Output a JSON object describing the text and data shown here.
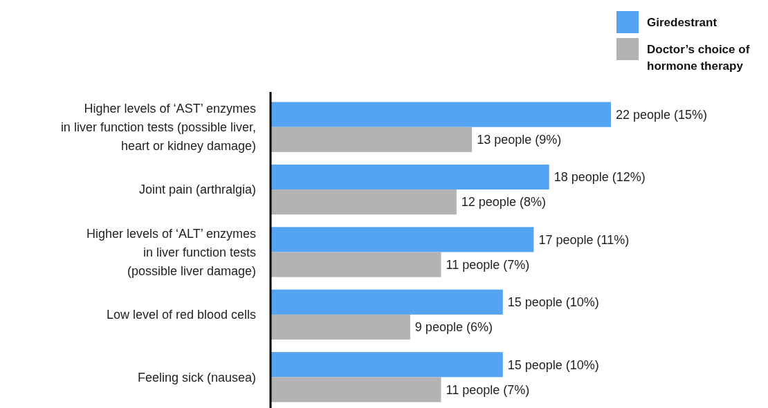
{
  "chart_data": {
    "type": "bar",
    "orientation": "horizontal",
    "legend": "top right",
    "categories": [
      "Higher levels of ‘AST’ enzymes\nin liver function tests (possible liver,\nheart or kidney damage)",
      "Joint pain (arthralgia)",
      "Higher levels of ‘ALT’ enzymes\nin liver function tests\n(possible liver damage)",
      "Low level of red blood cells",
      "Feeling sick (nausea)"
    ],
    "series": [
      {
        "name": "Giredestrant",
        "color": "#55a3f3",
        "values": [
          22,
          18,
          17,
          15,
          15
        ],
        "value_labels": [
          "22 people (15%)",
          "18 people (12%)",
          "17 people (11%)",
          "15 people (10%)",
          "15 people (10%)"
        ]
      },
      {
        "name": "Doctor’s choice of hormone therapy",
        "color": "#b3b3b3",
        "values": [
          13,
          12,
          11,
          9,
          11
        ],
        "value_labels": [
          "13 people (9%)",
          "12 people (8%)",
          "11 people (7%)",
          "9 people (6%)",
          "11 people (7%)"
        ]
      }
    ]
  }
}
